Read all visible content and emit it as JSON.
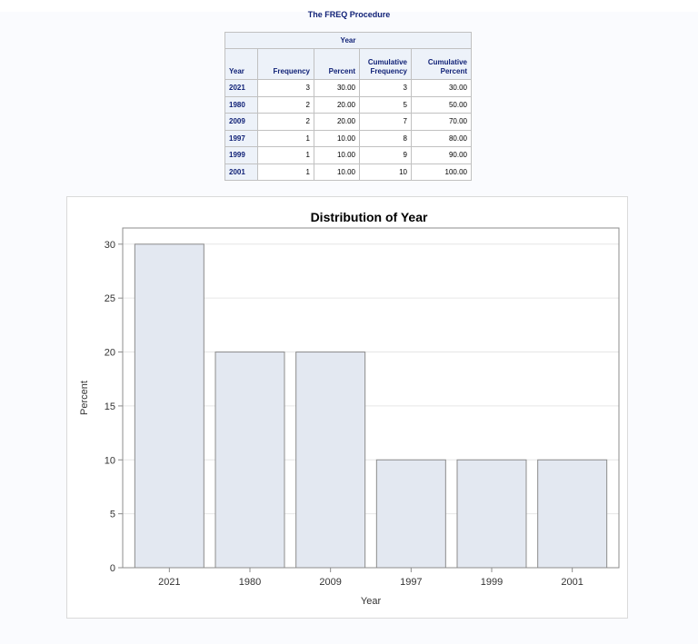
{
  "procedure_title": "The FREQ Procedure",
  "freq_table": {
    "spanning_header": "Year",
    "columns": [
      "Year",
      "Frequency",
      "Percent",
      "Cumulative Frequency",
      "Cumulative Percent"
    ],
    "rows": [
      {
        "year": "2021",
        "frequency": "3",
        "percent": "30.00",
        "cum_frequency": "3",
        "cum_percent": "30.00"
      },
      {
        "year": "1980",
        "frequency": "2",
        "percent": "20.00",
        "cum_frequency": "5",
        "cum_percent": "50.00"
      },
      {
        "year": "2009",
        "frequency": "2",
        "percent": "20.00",
        "cum_frequency": "7",
        "cum_percent": "70.00"
      },
      {
        "year": "1997",
        "frequency": "1",
        "percent": "10.00",
        "cum_frequency": "8",
        "cum_percent": "80.00"
      },
      {
        "year": "1999",
        "frequency": "1",
        "percent": "10.00",
        "cum_frequency": "9",
        "cum_percent": "90.00"
      },
      {
        "year": "2001",
        "frequency": "1",
        "percent": "10.00",
        "cum_frequency": "10",
        "cum_percent": "100.00"
      }
    ]
  },
  "colors": {
    "bar_fill": "#e3e8f1",
    "bar_stroke": "#8c8c8c",
    "grid": "#e6e6e6",
    "header_text": "#112277",
    "header_bg": "#edf2f9"
  },
  "chart_data": {
    "type": "bar",
    "title": "Distribution of Year",
    "xlabel": "Year",
    "ylabel": "Percent",
    "categories": [
      "2021",
      "1980",
      "2009",
      "1997",
      "1999",
      "2001"
    ],
    "values": [
      30,
      20,
      20,
      10,
      10,
      10
    ],
    "ylim": [
      0,
      31.5
    ],
    "yticks": [
      0,
      5,
      10,
      15,
      20,
      25,
      30
    ],
    "grid": true
  }
}
